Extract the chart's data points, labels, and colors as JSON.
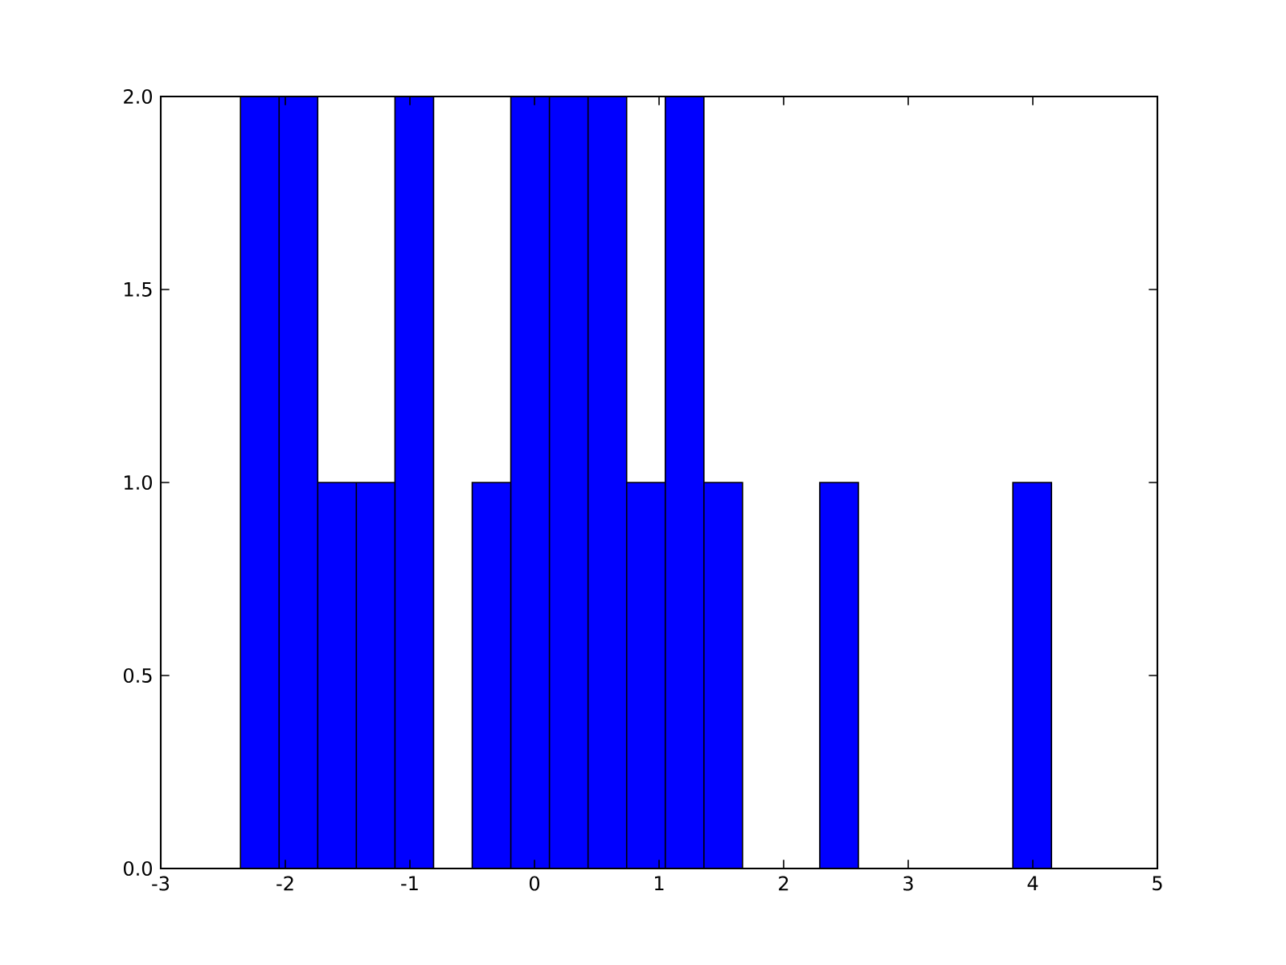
{
  "chart_data": {
    "type": "histogram",
    "color": "#0000ff",
    "bins": [
      -2.36,
      -2.05,
      -1.74,
      -1.43,
      -1.12,
      -0.81,
      -0.5,
      -0.19,
      0.12,
      0.43,
      0.74,
      1.05,
      1.36,
      1.67,
      1.98,
      2.29,
      2.6,
      2.91,
      3.22,
      3.53,
      3.84,
      4.15
    ],
    "values": [
      2,
      2,
      1,
      1,
      2,
      0,
      1,
      2,
      2,
      2,
      1,
      2,
      1,
      0,
      0,
      1,
      0,
      0,
      0,
      0,
      1
    ],
    "xlim": [
      -3,
      5
    ],
    "ylim": [
      0,
      2
    ],
    "xticks": [
      -3,
      -2,
      -1,
      0,
      1,
      2,
      3,
      4,
      5
    ],
    "yticks": [
      {
        "value": 0,
        "label": "0.0"
      },
      {
        "value": 0.5,
        "label": "0.5"
      },
      {
        "value": 1,
        "label": "1.0"
      },
      {
        "value": 1.5,
        "label": "1.5"
      },
      {
        "value": 2,
        "label": "2.0"
      }
    ]
  }
}
